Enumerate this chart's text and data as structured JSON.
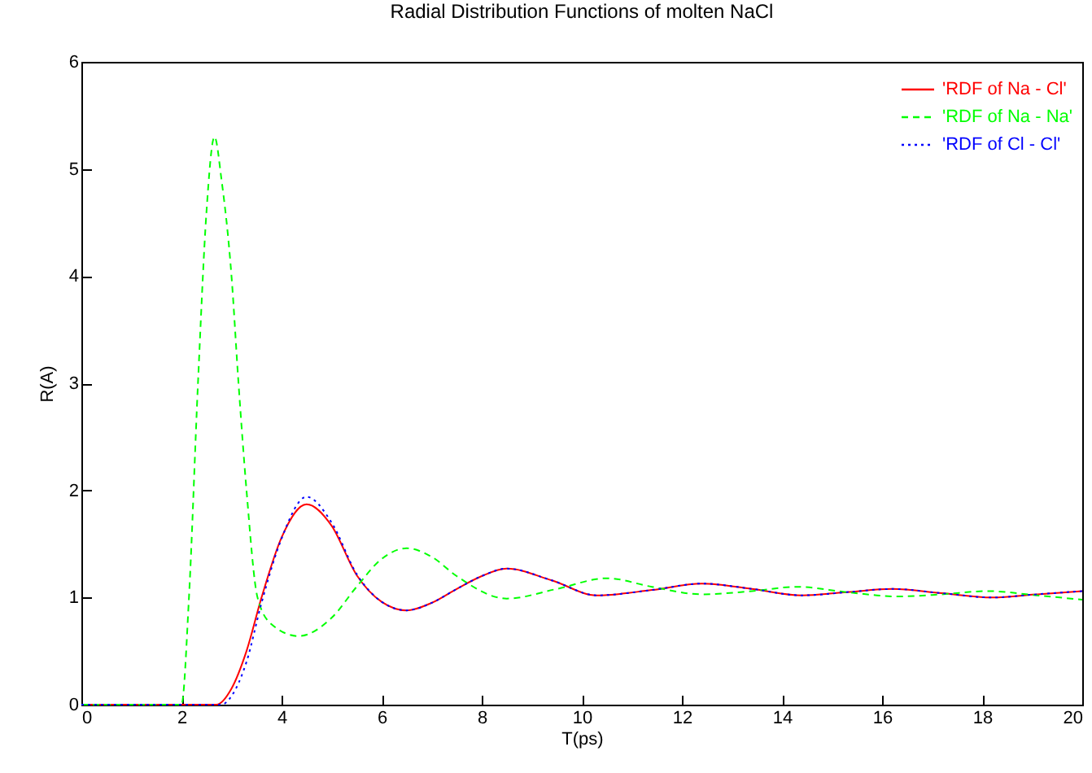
{
  "chart_data": {
    "type": "line",
    "title": "Radial Distribution Functions of molten NaCl",
    "xlabel": "T(ps)",
    "ylabel": "R(A)",
    "xlim": [
      0,
      20
    ],
    "xticks": [
      0,
      2,
      4,
      6,
      8,
      10,
      12,
      14,
      16,
      18,
      20
    ],
    "ylim": [
      0,
      6
    ],
    "yticks": [
      0,
      1,
      2,
      3,
      4,
      5,
      6
    ],
    "legend": "top right",
    "series": [
      {
        "name": "'RDF of Na - Cl'",
        "color": "#ff0000",
        "line_style": "solid",
        "x": [
          0,
          2.7,
          3.0,
          3.3,
          3.6,
          4.0,
          4.5,
          5.0,
          5.5,
          6.0,
          6.5,
          7.0,
          7.5,
          8.0,
          8.5,
          9.4,
          10.3,
          11.4,
          12.4,
          13.4,
          14.4,
          15.3,
          16.2,
          17.2,
          18.2,
          19.1,
          20
        ],
        "values": [
          0,
          0,
          0.15,
          0.5,
          1.0,
          1.56,
          1.87,
          1.67,
          1.21,
          0.96,
          0.88,
          0.95,
          1.08,
          1.2,
          1.27,
          1.16,
          1.02,
          1.07,
          1.13,
          1.08,
          1.02,
          1.05,
          1.08,
          1.04,
          1.0,
          1.03,
          1.06
        ]
      },
      {
        "name": "'RDF of Na - Na'",
        "color": "#00ff00",
        "line_style": "dashed",
        "x": [
          0,
          2.0,
          2.15,
          2.33,
          2.5,
          2.66,
          2.8,
          3.0,
          3.14,
          3.3,
          3.52,
          3.8,
          4.34,
          5.0,
          5.5,
          6.0,
          6.5,
          7.0,
          7.5,
          8.5,
          9.5,
          10.5,
          11.4,
          12.4,
          13.4,
          14.3,
          15.3,
          16.3,
          17.2,
          18.1,
          19.1,
          20
        ],
        "values": [
          0,
          0,
          1.0,
          3.0,
          4.6,
          5.3,
          4.9,
          4.0,
          3.0,
          2.0,
          1.0,
          0.75,
          0.64,
          0.81,
          1.1,
          1.36,
          1.46,
          1.38,
          1.2,
          0.99,
          1.08,
          1.18,
          1.1,
          1.03,
          1.06,
          1.1,
          1.05,
          1.01,
          1.03,
          1.06,
          1.02,
          0.98
        ]
      },
      {
        "name": "'RDF of Cl - Cl'",
        "color": "#0000ff",
        "line_style": "dotted",
        "x": [
          0,
          2.8,
          3.0,
          3.3,
          3.6,
          4.0,
          4.5,
          5.0,
          5.5,
          6.0,
          6.5,
          7.0,
          7.5,
          8.0,
          8.5,
          9.4,
          10.3,
          11.4,
          12.4,
          13.4,
          14.4,
          15.3,
          16.2,
          17.2,
          18.2,
          19.1,
          20
        ],
        "values": [
          0,
          0,
          0.08,
          0.4,
          0.95,
          1.55,
          1.94,
          1.7,
          1.22,
          0.96,
          0.88,
          0.95,
          1.08,
          1.2,
          1.27,
          1.16,
          1.02,
          1.07,
          1.13,
          1.08,
          1.02,
          1.05,
          1.08,
          1.04,
          1.0,
          1.03,
          1.06
        ]
      }
    ]
  }
}
